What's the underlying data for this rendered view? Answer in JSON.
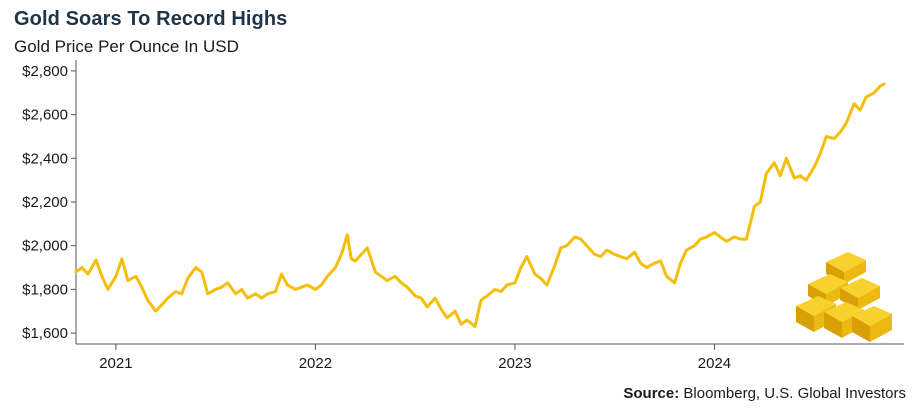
{
  "chart_data": {
    "type": "line",
    "title": "Gold Soars To Record Highs",
    "subtitle": "Gold Price Per Ounce In USD",
    "y_ticks": [
      "$1,600",
      "$1,800",
      "$2,000",
      "$2,200",
      "$2,400",
      "$2,600",
      "$2,800"
    ],
    "y_tick_values": [
      1600,
      1800,
      2000,
      2200,
      2400,
      2600,
      2800
    ],
    "ylim": [
      1550,
      2850
    ],
    "x_ticks": [
      "2021",
      "2022",
      "2023",
      "2024"
    ],
    "x_tick_values": [
      2021.0,
      2022.0,
      2023.0,
      2024.0
    ],
    "xlim": [
      2020.8,
      2024.95
    ],
    "grid": false,
    "line_color": "#f5be0b",
    "axis_color": "#555555",
    "series": [
      {
        "x": [
          2020.8,
          2020.83,
          2020.86,
          2020.9,
          2020.93,
          2020.96,
          2021.0,
          2021.03,
          2021.06,
          2021.1,
          2021.13,
          2021.16,
          2021.2,
          2021.23,
          2021.26,
          2021.3,
          2021.33,
          2021.36,
          2021.4,
          2021.43,
          2021.46,
          2021.5,
          2021.53,
          2021.56,
          2021.6,
          2021.63,
          2021.66,
          2021.7,
          2021.73,
          2021.76,
          2021.8,
          2021.83,
          2021.86,
          2021.9,
          2021.93,
          2021.96,
          2022.0,
          2022.03,
          2022.06,
          2022.1,
          2022.13,
          2022.16,
          2022.18,
          2022.2,
          2022.23,
          2022.26,
          2022.3,
          2022.33,
          2022.36,
          2022.4,
          2022.43,
          2022.46,
          2022.5,
          2022.53,
          2022.56,
          2022.6,
          2022.63,
          2022.66,
          2022.7,
          2022.73,
          2022.76,
          2022.8,
          2022.83,
          2022.86,
          2022.9,
          2022.93,
          2022.96,
          2023.0,
          2023.03,
          2023.06,
          2023.1,
          2023.13,
          2023.16,
          2023.2,
          2023.23,
          2023.26,
          2023.3,
          2023.33,
          2023.36,
          2023.4,
          2023.43,
          2023.46,
          2023.5,
          2023.53,
          2023.56,
          2023.6,
          2023.63,
          2023.66,
          2023.7,
          2023.73,
          2023.76,
          2023.8,
          2023.83,
          2023.86,
          2023.9,
          2023.93,
          2023.96,
          2024.0,
          2024.03,
          2024.06,
          2024.1,
          2024.13,
          2024.16,
          2024.2,
          2024.23,
          2024.26,
          2024.3,
          2024.33,
          2024.36,
          2024.4,
          2024.43,
          2024.46,
          2024.5,
          2024.53,
          2024.56,
          2024.6,
          2024.63,
          2024.66,
          2024.7,
          2024.73,
          2024.76,
          2024.8,
          2024.83,
          2024.85
        ],
        "values": [
          1880,
          1900,
          1870,
          1935,
          1860,
          1800,
          1860,
          1940,
          1840,
          1860,
          1810,
          1750,
          1700,
          1730,
          1760,
          1790,
          1780,
          1850,
          1900,
          1880,
          1780,
          1800,
          1810,
          1830,
          1780,
          1800,
          1760,
          1780,
          1760,
          1780,
          1790,
          1870,
          1820,
          1800,
          1810,
          1820,
          1800,
          1820,
          1860,
          1900,
          1960,
          2050,
          1940,
          1930,
          1960,
          1990,
          1880,
          1860,
          1840,
          1860,
          1830,
          1810,
          1770,
          1760,
          1720,
          1760,
          1710,
          1670,
          1700,
          1640,
          1660,
          1630,
          1750,
          1770,
          1800,
          1790,
          1820,
          1830,
          1900,
          1950,
          1870,
          1850,
          1820,
          1910,
          1990,
          2000,
          2040,
          2030,
          2000,
          1960,
          1950,
          1980,
          1960,
          1950,
          1940,
          1970,
          1920,
          1900,
          1920,
          1930,
          1860,
          1830,
          1920,
          1980,
          2000,
          2030,
          2040,
          2060,
          2040,
          2020,
          2040,
          2030,
          2030,
          2180,
          2200,
          2330,
          2380,
          2320,
          2400,
          2310,
          2320,
          2300,
          2360,
          2420,
          2500,
          2490,
          2520,
          2560,
          2650,
          2620,
          2680,
          2700,
          2730,
          2740
        ]
      }
    ]
  },
  "source": {
    "label": "Source:",
    "text": "Bloomberg, U.S. Global Investors"
  }
}
